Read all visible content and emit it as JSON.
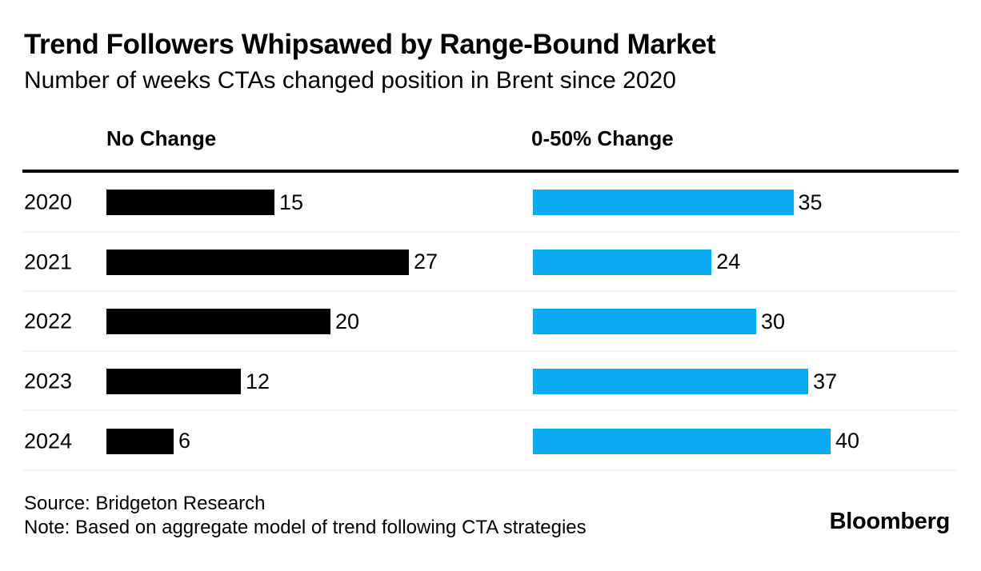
{
  "chart": {
    "title": "Trend Followers Whipsawed by Range-Bound Market",
    "subtitle": "Number of weeks CTAs changed position in Brent since 2020",
    "source": "Source: Bridgeton Research",
    "note": "Note: Based on aggregate model of trend following CTA strategies",
    "brand": "Bloomberg"
  },
  "chart_data": {
    "type": "bar",
    "orientation": "horizontal",
    "title": "Trend Followers Whipsawed by Range-Bound Market",
    "subtitle": "Number of weeks CTAs changed position in Brent since 2020",
    "categories": [
      "2020",
      "2021",
      "2022",
      "2023",
      "2024"
    ],
    "series": [
      {
        "name": "No Change",
        "color": "#000000",
        "values": [
          15,
          27,
          20,
          12,
          6
        ]
      },
      {
        "name": "0-50% Change",
        "color": "#0ba9f0",
        "values": [
          35,
          24,
          30,
          37,
          40
        ]
      }
    ],
    "value_labels": true,
    "grid": false,
    "legend_position": "column-headers",
    "xlim_per_column_normalized_to_max": true
  }
}
